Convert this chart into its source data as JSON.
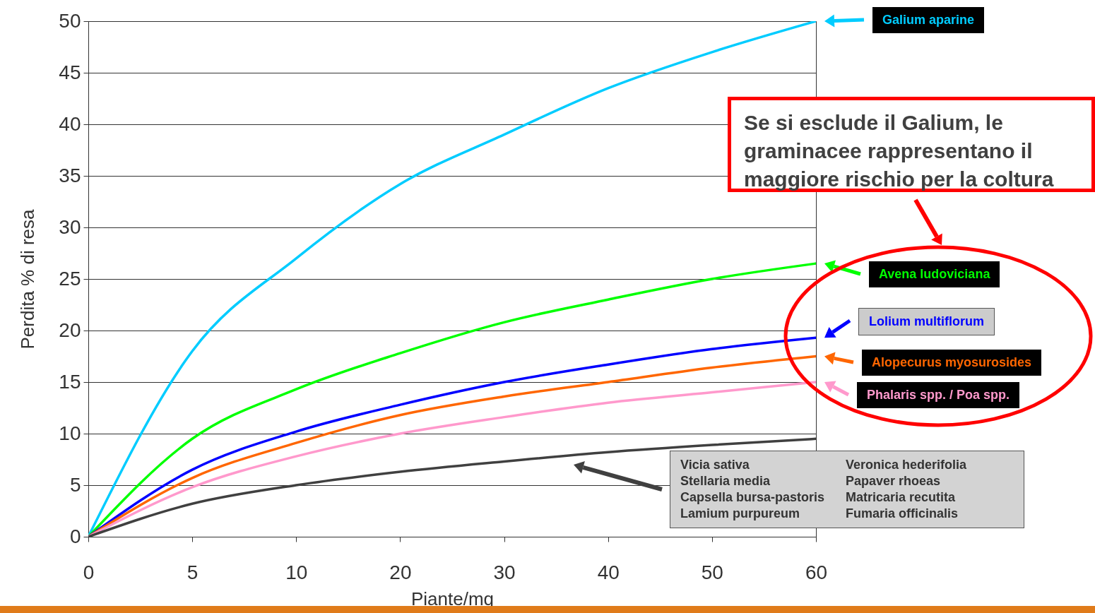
{
  "chart_data": {
    "type": "line",
    "xlabel": "Piante/mq",
    "ylabel": "Perdita % di resa",
    "categories": [
      "0",
      "5",
      "10",
      "20",
      "30",
      "40",
      "50",
      "60"
    ],
    "series": [
      {
        "name": "Galium aparine",
        "color": "#00ccff",
        "values": [
          0,
          18,
          27,
          34.2,
          39,
          43.5,
          47,
          50
        ]
      },
      {
        "name": "Avena ludoviciana",
        "color": "#00ff00",
        "values": [
          0,
          9.5,
          14.3,
          17.8,
          20.8,
          23,
          25,
          26.5
        ]
      },
      {
        "name": "Lolium multiflorum",
        "color": "#0000ff",
        "values": [
          0,
          6.5,
          10.2,
          12.8,
          15,
          16.7,
          18.2,
          19.3
        ]
      },
      {
        "name": "Alopecurus myosurosides",
        "color": "#ff6600",
        "values": [
          0,
          5.7,
          9.1,
          11.8,
          13.6,
          15,
          16.4,
          17.5
        ]
      },
      {
        "name": "Phalaris spp. / Poa spp.",
        "color": "#ff99cc",
        "values": [
          0,
          4.8,
          7.8,
          10,
          11.6,
          13,
          14,
          15
        ]
      },
      {
        "color": "#404040",
        "values": [
          0,
          3.2,
          5,
          6.3,
          7.3,
          8.2,
          8.9,
          9.5
        ]
      }
    ],
    "ylim": [
      0,
      50
    ],
    "yticks": [
      0,
      5,
      10,
      15,
      20,
      25,
      30,
      35,
      40,
      45,
      50
    ],
    "grid": "y",
    "legend": "right",
    "line_style": "solid",
    "marker": "none",
    "annotations": [
      "Se si esclude il Galium, le graminacee rappresentano il maggiore rischio per la coltura",
      "Vicia sativa",
      "Stellaria media",
      "Capsella bursa-pastoris",
      "Lamium purpureum",
      "Veronica hederifolia",
      "Papaver rhoeas",
      "Matricaria recutita",
      "Fumaria officinalis"
    ]
  }
}
